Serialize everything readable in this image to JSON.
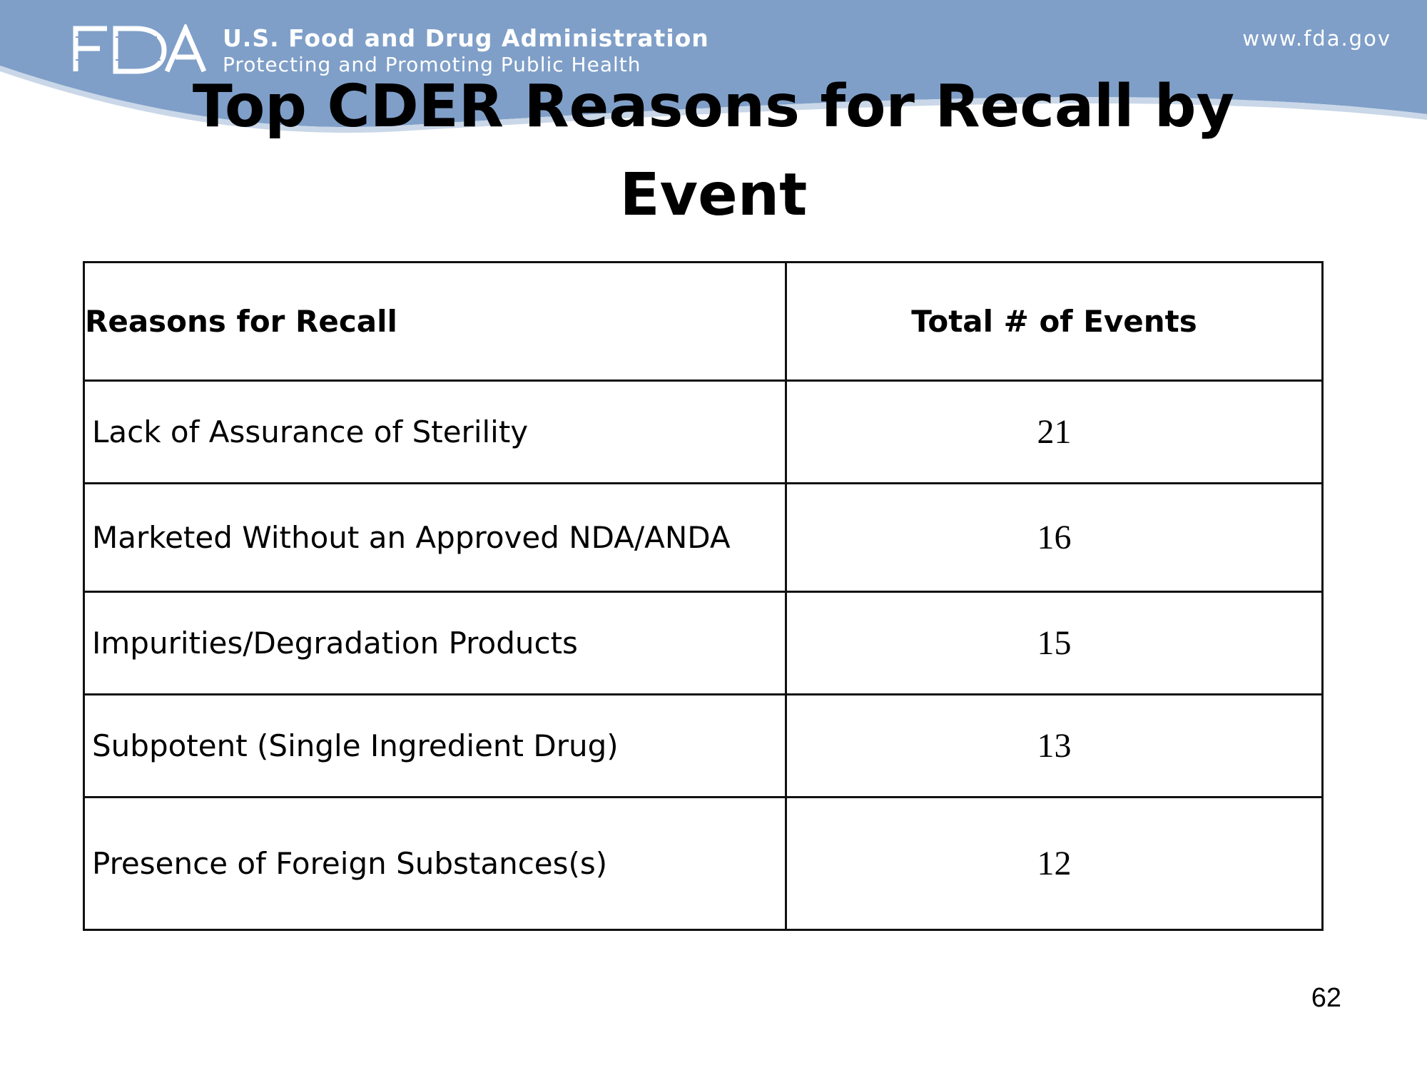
{
  "header": {
    "logo_text": "FDA",
    "agency_name": "U.S. Food and Drug Administration",
    "tagline": "Protecting and Promoting Public Health",
    "website": "www.fda.gov",
    "banner_color": "#7f9fc8"
  },
  "slide": {
    "title": "Top CDER Reasons for Recall by Event",
    "page_number": "62"
  },
  "table": {
    "columns": [
      "Reasons for Recall",
      "Total # of Events"
    ],
    "rows": [
      {
        "reason": "Lack of Assurance of Sterility",
        "count": "21"
      },
      {
        "reason": "Marketed Without an Approved NDA/ANDA",
        "count": "16"
      },
      {
        "reason": "Impurities/Degradation Products",
        "count": "15"
      },
      {
        "reason": "Subpotent (Single Ingredient Drug)",
        "count": "13"
      },
      {
        "reason": "Presence of Foreign Substances(s)",
        "count": "12"
      }
    ]
  }
}
